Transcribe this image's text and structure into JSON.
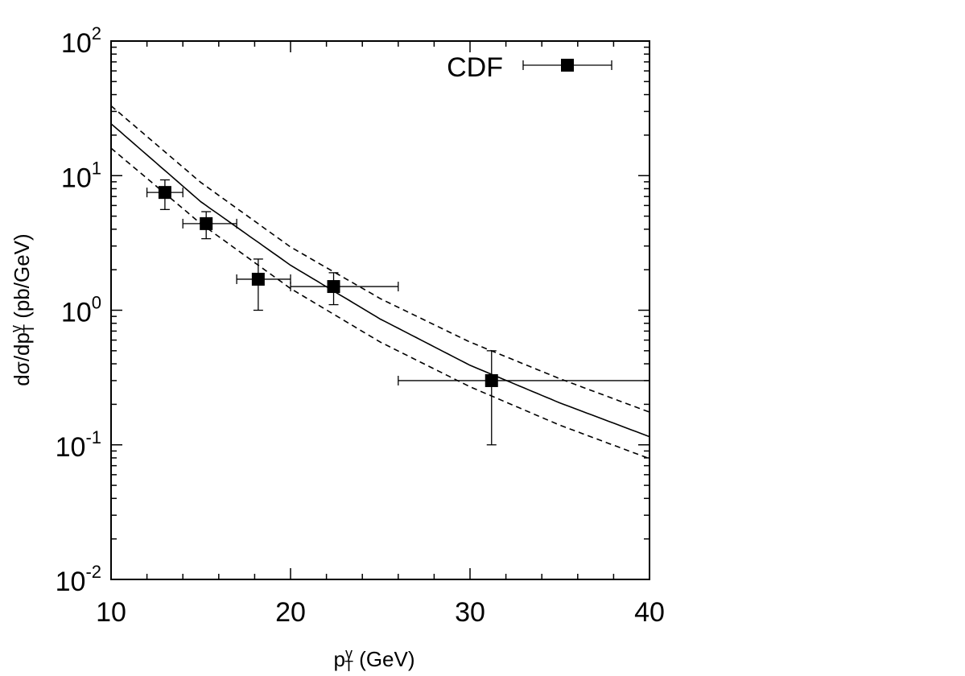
{
  "chart_data": {
    "type": "scatter",
    "title": "",
    "xlabel": {
      "base": "p",
      "sup": "γ",
      "sub": "T",
      "rest": " (GeV)"
    },
    "ylabel": {
      "base": "dσ/dp",
      "sup": "γ",
      "sub": "T",
      "rest": " (pb/GeV)"
    },
    "xlim": [
      10,
      40
    ],
    "ylim": [
      0.01,
      100
    ],
    "yscale": "log",
    "x_ticks": [
      "10",
      "20",
      "30",
      "40"
    ],
    "y_ticks": [
      {
        "base": "10",
        "exp": "-2"
      },
      {
        "base": "10",
        "exp": "-1"
      },
      {
        "base": "10",
        "exp": "0"
      },
      {
        "base": "10",
        "exp": "1"
      },
      {
        "base": "10",
        "exp": "2"
      }
    ],
    "legend": {
      "label": "CDF",
      "position": "top-right"
    },
    "series": [
      {
        "name": "CDF",
        "kind": "points",
        "marker": "square",
        "points": [
          {
            "x": 13.0,
            "y": 7.5,
            "xerr": [
              12.0,
              14.0
            ],
            "yerr": [
              5.6,
              9.3
            ]
          },
          {
            "x": 15.3,
            "y": 4.4,
            "xerr": [
              14.0,
              17.0
            ],
            "yerr": [
              3.4,
              5.4
            ]
          },
          {
            "x": 18.2,
            "y": 1.7,
            "xerr": [
              17.0,
              20.0
            ],
            "yerr": [
              1.0,
              2.4
            ]
          },
          {
            "x": 22.4,
            "y": 1.5,
            "xerr": [
              20.0,
              26.0
            ],
            "yerr": [
              1.1,
              1.9
            ]
          },
          {
            "x": 31.2,
            "y": 0.3,
            "xerr": [
              26.0,
              40.0
            ],
            "yerr": [
              0.1,
              0.5
            ]
          }
        ]
      },
      {
        "name": "central",
        "kind": "line",
        "style": "solid",
        "x": [
          10,
          15,
          20,
          25,
          30,
          35,
          40
        ],
        "y": [
          24.3,
          6.4,
          2.16,
          0.86,
          0.39,
          0.205,
          0.115
        ]
      },
      {
        "name": "upper",
        "kind": "line",
        "style": "dashed",
        "x": [
          10,
          15,
          20,
          25,
          30,
          35,
          40
        ],
        "y": [
          33.0,
          8.9,
          2.95,
          1.22,
          0.58,
          0.31,
          0.175
        ]
      },
      {
        "name": "lower",
        "kind": "line",
        "style": "dashed",
        "x": [
          10,
          15,
          20,
          25,
          30,
          35,
          40
        ],
        "y": [
          16.0,
          4.4,
          1.45,
          0.58,
          0.27,
          0.14,
          0.079
        ]
      }
    ]
  }
}
